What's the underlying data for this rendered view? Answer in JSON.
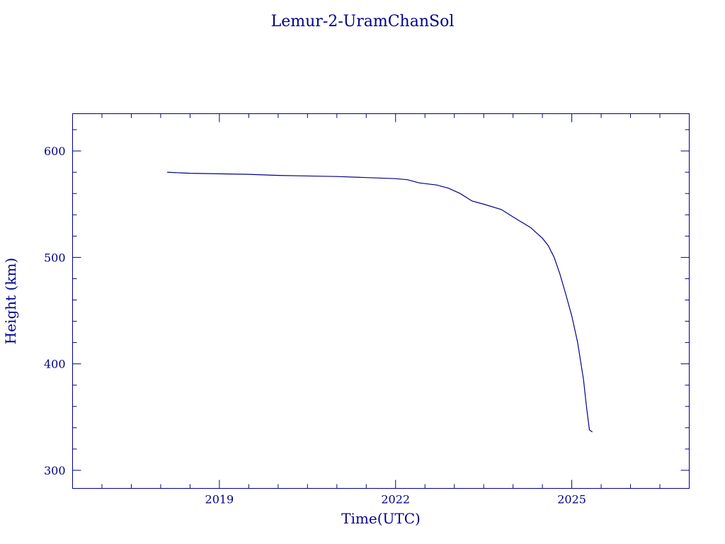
{
  "chart_data": {
    "type": "line",
    "title": "Lemur-2-UramChanSol",
    "xlabel": "Time(UTC)",
    "ylabel": "Height (km)",
    "xlim": [
      2016.5,
      2027.0
    ],
    "ylim": [
      283,
      635
    ],
    "x_ticks": [
      2019,
      2022,
      2025
    ],
    "y_ticks": [
      300,
      400,
      500,
      600
    ],
    "x_minor_step": 0.5,
    "y_minor_step": 20,
    "grid": false,
    "color": "#00008b",
    "series": [
      {
        "x": [
          2018.11,
          2018.5,
          2019.0,
          2019.5,
          2020.0,
          2020.5,
          2021.0,
          2021.5,
          2022.0,
          2022.2,
          2022.4,
          2022.7,
          2022.9,
          2023.1,
          2023.3,
          2023.5,
          2023.8,
          2024.0,
          2024.3,
          2024.5,
          2024.6,
          2024.7,
          2024.8,
          2024.9,
          2025.0,
          2025.1,
          2025.2,
          2025.25,
          2025.3,
          2025.35
        ],
        "y": [
          580,
          579,
          578.5,
          578,
          577,
          576.5,
          576,
          575,
          574,
          573,
          570,
          568,
          565,
          560,
          553,
          550,
          545,
          538,
          528,
          518,
          511,
          500,
          484,
          465,
          445,
          420,
          385,
          360,
          338,
          336
        ]
      }
    ]
  }
}
